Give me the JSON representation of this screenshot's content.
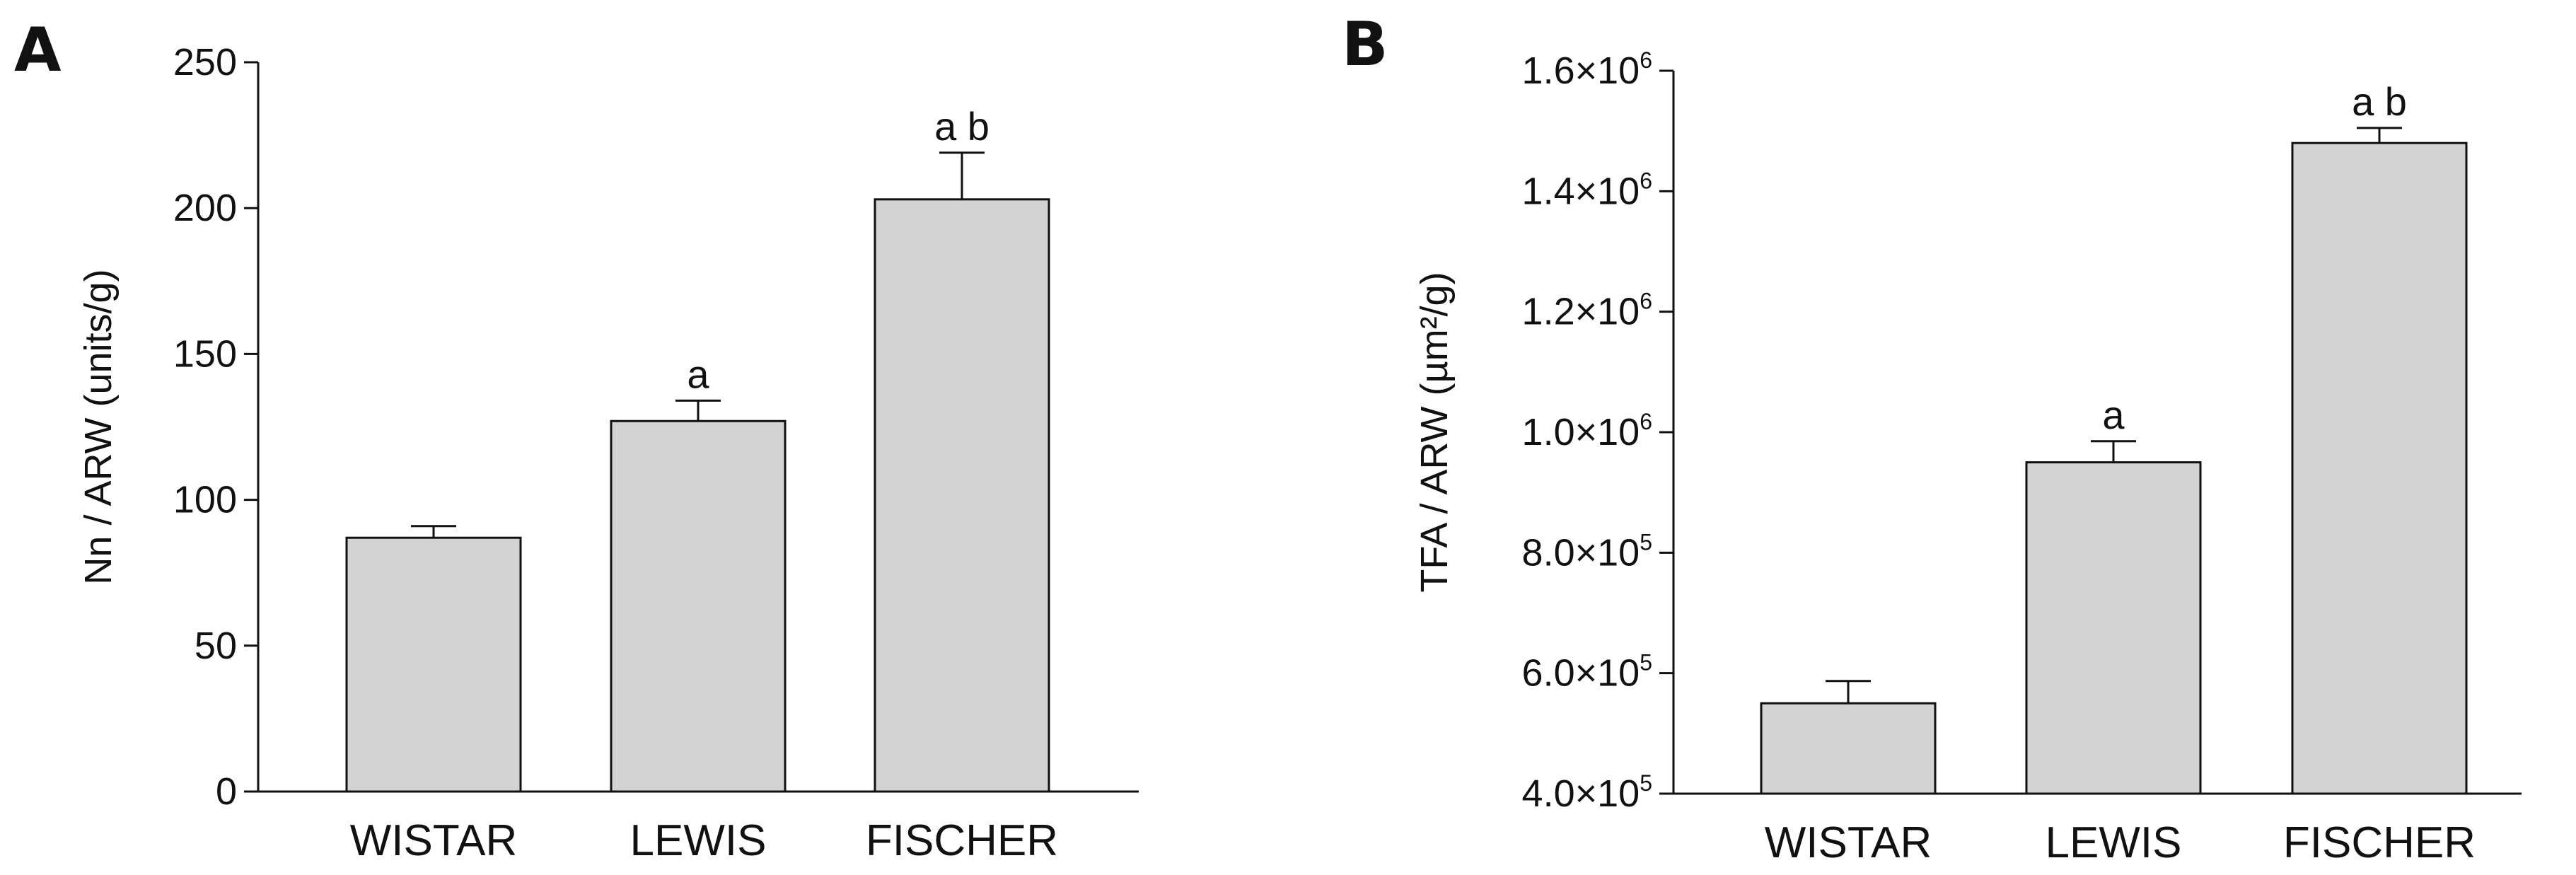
{
  "colors": {
    "bar_fill": "#d3d3d3",
    "stroke": "#111111",
    "background": "#ffffff"
  },
  "chart_data": [
    {
      "panel": "A",
      "type": "bar",
      "categories": [
        "WISTAR",
        "LEWIS",
        "FISCHER"
      ],
      "values": [
        87,
        127,
        203
      ],
      "errors": [
        4,
        7,
        16
      ],
      "significance": [
        "",
        "a",
        "a b"
      ],
      "ylabel": "Nn / ARW (units/g)",
      "xlabel": "",
      "ylim": [
        0,
        250
      ],
      "yticks": [
        0,
        50,
        100,
        150,
        200,
        250
      ],
      "ytick_labels": [
        "0",
        "50",
        "100",
        "150",
        "200",
        "250"
      ],
      "grid": false,
      "legend": "none"
    },
    {
      "panel": "B",
      "type": "bar",
      "categories": [
        "WISTAR",
        "LEWIS",
        "FISCHER"
      ],
      "values": [
        550000,
        950000,
        1480000
      ],
      "errors": [
        37000,
        35000,
        25000
      ],
      "significance": [
        "",
        "a",
        "a b"
      ],
      "ylabel": "TFA / ARW (µm²/g)",
      "xlabel": "",
      "ylim": [
        400000,
        1600000
      ],
      "yticks": [
        400000,
        600000,
        800000,
        1000000,
        1200000,
        1400000,
        1600000
      ],
      "ytick_labels": [
        {
          "mantissa": "4.0×10",
          "exp": "5"
        },
        {
          "mantissa": "6.0×10",
          "exp": "5"
        },
        {
          "mantissa": "8.0×10",
          "exp": "5"
        },
        {
          "mantissa": "1.0×10",
          "exp": "6"
        },
        {
          "mantissa": "1.2×10",
          "exp": "6"
        },
        {
          "mantissa": "1.4×10",
          "exp": "6"
        },
        {
          "mantissa": "1.6×10",
          "exp": "6"
        }
      ],
      "grid": false,
      "legend": "none"
    }
  ]
}
